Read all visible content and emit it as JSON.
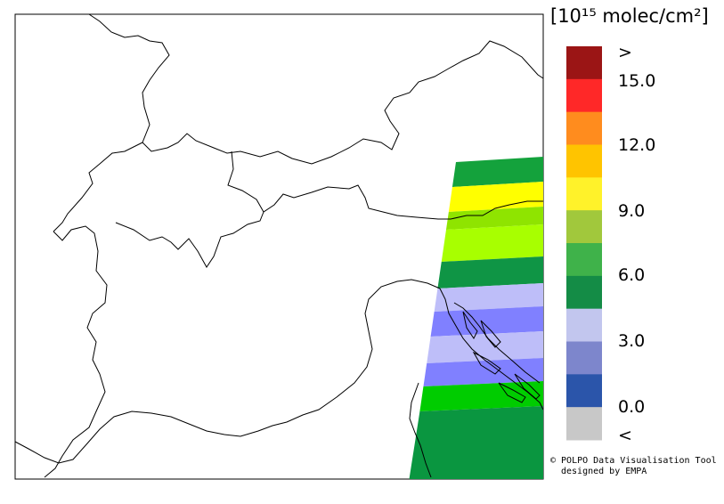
{
  "legend": {
    "unit": "[10¹⁵ molec/cm²]",
    "colors": [
      "#c8c8c8",
      "#2b55aa",
      "#7d86cc",
      "#c2c6ee",
      "#148c46",
      "#3fb24a",
      "#a1c83c",
      "#fff22a",
      "#ffc400",
      "#ff8c1e",
      "#ff2828",
      "#9b1515"
    ],
    "labels": [
      ">",
      "15.0",
      "12.0",
      "9.0",
      "6.0",
      "3.0",
      "0.0",
      "<"
    ]
  },
  "credit": {
    "line1": "© POLPO Data Visualisation Tool",
    "line2": "designed by EMPA"
  },
  "swath": {
    "bands": [
      {
        "color": "#14a23c"
      },
      {
        "color": "#ffff00"
      },
      {
        "color": "#8fe400"
      },
      {
        "color": "#a8ff00"
      },
      {
        "color": "#0f9545"
      },
      {
        "color": "#bebef9"
      },
      {
        "color": "#8080ff"
      },
      {
        "color": "#bebef9"
      },
      {
        "color": "#8080ff"
      },
      {
        "color": "#00cc00"
      },
      {
        "color": "#0a9640"
      }
    ]
  }
}
